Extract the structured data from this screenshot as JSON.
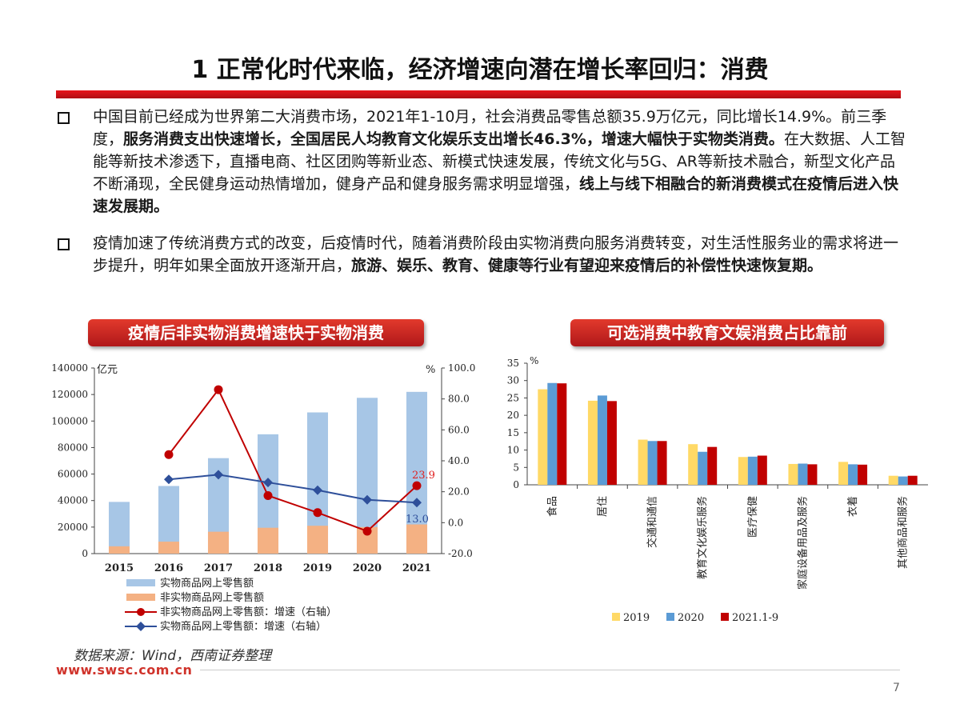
{
  "title": "1 正常化时代来临，经济增速向潜在增长率回归：消费",
  "bullets": [
    {
      "segments": [
        {
          "t": "中国目前已经成为世界第二大消费市场，2021年1-10月，社会消费品零售总额35.9万亿元，同比增长14.9%。前三季度，",
          "b": false
        },
        {
          "t": "服务消费支出快速增长，全国居民人均教育文化娱乐支出增长46.3%，增速大幅快于实物类消费。",
          "b": true
        },
        {
          "t": "在大数据、人工智能等新技术渗透下，直播电商、社区团购等新业态、新模式快速发展，传统文化与5G、AR等新技术融合，新型文化产品不断涌现，全民健身运动热情增加，健身产品和健身服务需求明显增强，",
          "b": false
        },
        {
          "t": "线上与线下相融合的新消费模式在疫情后进入快速发展期。",
          "b": true
        }
      ]
    },
    {
      "segments": [
        {
          "t": "疫情加速了传统消费方式的改变，后疫情时代，随着消费阶段由实物消费向服务消费转变，对生活性服务业的需求将进一步提升，明年如果全面放开逐渐开启，",
          "b": false
        },
        {
          "t": "旅游、娱乐、教育、健康等行业有望迎来疫情后的补偿性快速恢复期。",
          "b": true
        }
      ]
    }
  ],
  "left_chart_title": "疫情后非实物消费增速快于实物消费",
  "right_chart_title": "可选消费中教育文娱消费占比靠前",
  "source": "数据来源：Wind，西南证券整理",
  "url": "www.swsc.com.cn",
  "page_number": "7",
  "chart_data": [
    {
      "type": "bar",
      "categories": [
        "2015",
        "2016",
        "2017",
        "2018",
        "2019",
        "2020",
        "2021"
      ],
      "ylabel_left": "亿元",
      "ylabel_right": "%",
      "ylim_left": [
        0,
        140000
      ],
      "ylim_right": [
        -20,
        100
      ],
      "yticks_left": [
        "0",
        "20000",
        "40000",
        "60000",
        "80000",
        "100000",
        "120000",
        "140000"
      ],
      "yticks_right": [
        "-20.0",
        "0.0",
        "20.0",
        "40.0",
        "60.0",
        "80.0",
        "100.0"
      ],
      "series": [
        {
          "name": "实物商品网上零售额",
          "kind": "bar",
          "axis": "left",
          "color": "#a7c6e6",
          "values": [
            39000,
            51000,
            72000,
            90000,
            106500,
            117500,
            122000
          ]
        },
        {
          "name": "非实物商品网上零售额",
          "kind": "bar",
          "axis": "left",
          "color": "#f4b183",
          "values": [
            5500,
            9000,
            16500,
            19500,
            21000,
            20000,
            22000
          ]
        },
        {
          "name": "非实物商品网上零售额：增速（右轴）",
          "kind": "line",
          "axis": "right",
          "color": "#c00000",
          "marker": "circle",
          "values": [
            null,
            44,
            86,
            17.5,
            6.5,
            -5.5,
            23.9
          ]
        },
        {
          "name": "实物商品网上零售额：增速（右轴）",
          "kind": "line",
          "axis": "right",
          "color": "#2e4f9a",
          "marker": "diamond",
          "values": [
            null,
            28,
            31,
            26,
            21,
            14.8,
            13.0
          ]
        }
      ],
      "annotations": [
        {
          "text": "23.9",
          "color": "#e02020"
        },
        {
          "text": "13.0",
          "color": "#2e4f9a"
        }
      ],
      "legend": "bottom"
    },
    {
      "type": "bar",
      "categories": [
        "食品",
        "居住",
        "交通和通信",
        "教育文化娱乐服务",
        "医疗保健",
        "家庭设备用品及服务",
        "衣着",
        "其他商品和服务"
      ],
      "ylabel": "%",
      "ylim": [
        0,
        35
      ],
      "yticks": [
        "0",
        "5",
        "10",
        "15",
        "20",
        "25",
        "30",
        "35"
      ],
      "series": [
        {
          "name": "2019",
          "color": "#ffd966",
          "values": [
            27.5,
            24.2,
            13.0,
            11.7,
            8.0,
            6.0,
            6.6,
            2.6
          ]
        },
        {
          "name": "2020",
          "color": "#5b9bd5",
          "values": [
            29.3,
            25.7,
            12.6,
            9.5,
            8.1,
            6.1,
            5.9,
            2.4
          ]
        },
        {
          "name": "2021.1-9",
          "color": "#c00000",
          "values": [
            29.2,
            24.1,
            12.6,
            10.9,
            8.4,
            5.9,
            5.8,
            2.6
          ]
        }
      ],
      "legend": "bottom"
    }
  ]
}
